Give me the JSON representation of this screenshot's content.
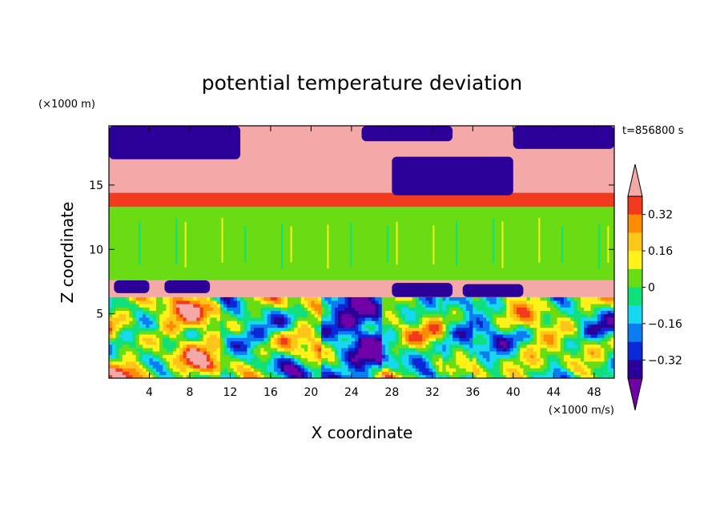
{
  "chart_data": {
    "type": "heatmap",
    "title": "potential temperature deviation",
    "xlabel": "X coordinate",
    "ylabel": "Z coordinate",
    "x_unit": "(×1000 m/s)",
    "y_unit": "(×1000 m)",
    "time_label": "t=856800 s",
    "xlim": [
      0,
      50
    ],
    "ylim": [
      0,
      19.6
    ],
    "x_ticks": [
      4,
      8,
      12,
      16,
      20,
      24,
      28,
      32,
      36,
      40,
      44,
      48
    ],
    "y_ticks": [
      5,
      10,
      15
    ],
    "colorbar": {
      "levels": [
        -0.4,
        -0.32,
        -0.24,
        -0.16,
        -0.08,
        0,
        0.08,
        0.16,
        0.24,
        0.32,
        0.4
      ],
      "colors": [
        "#7000a8",
        "#2a0099",
        "#0a28d8",
        "#0a7ef0",
        "#16d8f0",
        "#10e07c",
        "#6adc14",
        "#fff21a",
        "#ffc61a",
        "#ff8c00",
        "#f23a1e",
        "#f5a8a8"
      ],
      "tick_labels": [
        "0.32",
        "0.16",
        "0",
        "−0.16",
        "−0.32"
      ],
      "tick_values": [
        0.32,
        0.16,
        0,
        -0.16,
        -0.32
      ]
    },
    "bands": [
      {
        "z": [
          0,
          6.3
        ],
        "pattern": "turbulent",
        "description_values": [
          -0.4,
          0.4
        ]
      },
      {
        "z": [
          6.3,
          7.6
        ],
        "value": 0.4
      },
      {
        "z": [
          7.6,
          13.3
        ],
        "value": 0.04
      },
      {
        "z": [
          13.3,
          14.4
        ],
        "value": 0.34
      },
      {
        "z": [
          14.4,
          19.6
        ],
        "value": 0.4
      }
    ],
    "patches": [
      {
        "x": [
          0,
          13
        ],
        "z": [
          17,
          19.6
        ],
        "value": -0.4
      },
      {
        "x": [
          25,
          34
        ],
        "z": [
          18.4,
          19.6
        ],
        "value": -0.4
      },
      {
        "x": [
          28,
          40
        ],
        "z": [
          14.2,
          17.2
        ],
        "value": -0.4
      },
      {
        "x": [
          40,
          50
        ],
        "z": [
          17.8,
          19.6
        ],
        "value": -0.4
      },
      {
        "x": [
          0.5,
          4
        ],
        "z": [
          6.6,
          7.6
        ],
        "value": -0.4
      },
      {
        "x": [
          5.5,
          10
        ],
        "z": [
          6.6,
          7.6
        ],
        "value": -0.4
      },
      {
        "x": [
          28,
          34
        ],
        "z": [
          6.3,
          7.4
        ],
        "value": -0.4
      },
      {
        "x": [
          35,
          41
        ],
        "z": [
          6.3,
          7.3
        ],
        "value": -0.4
      }
    ]
  }
}
